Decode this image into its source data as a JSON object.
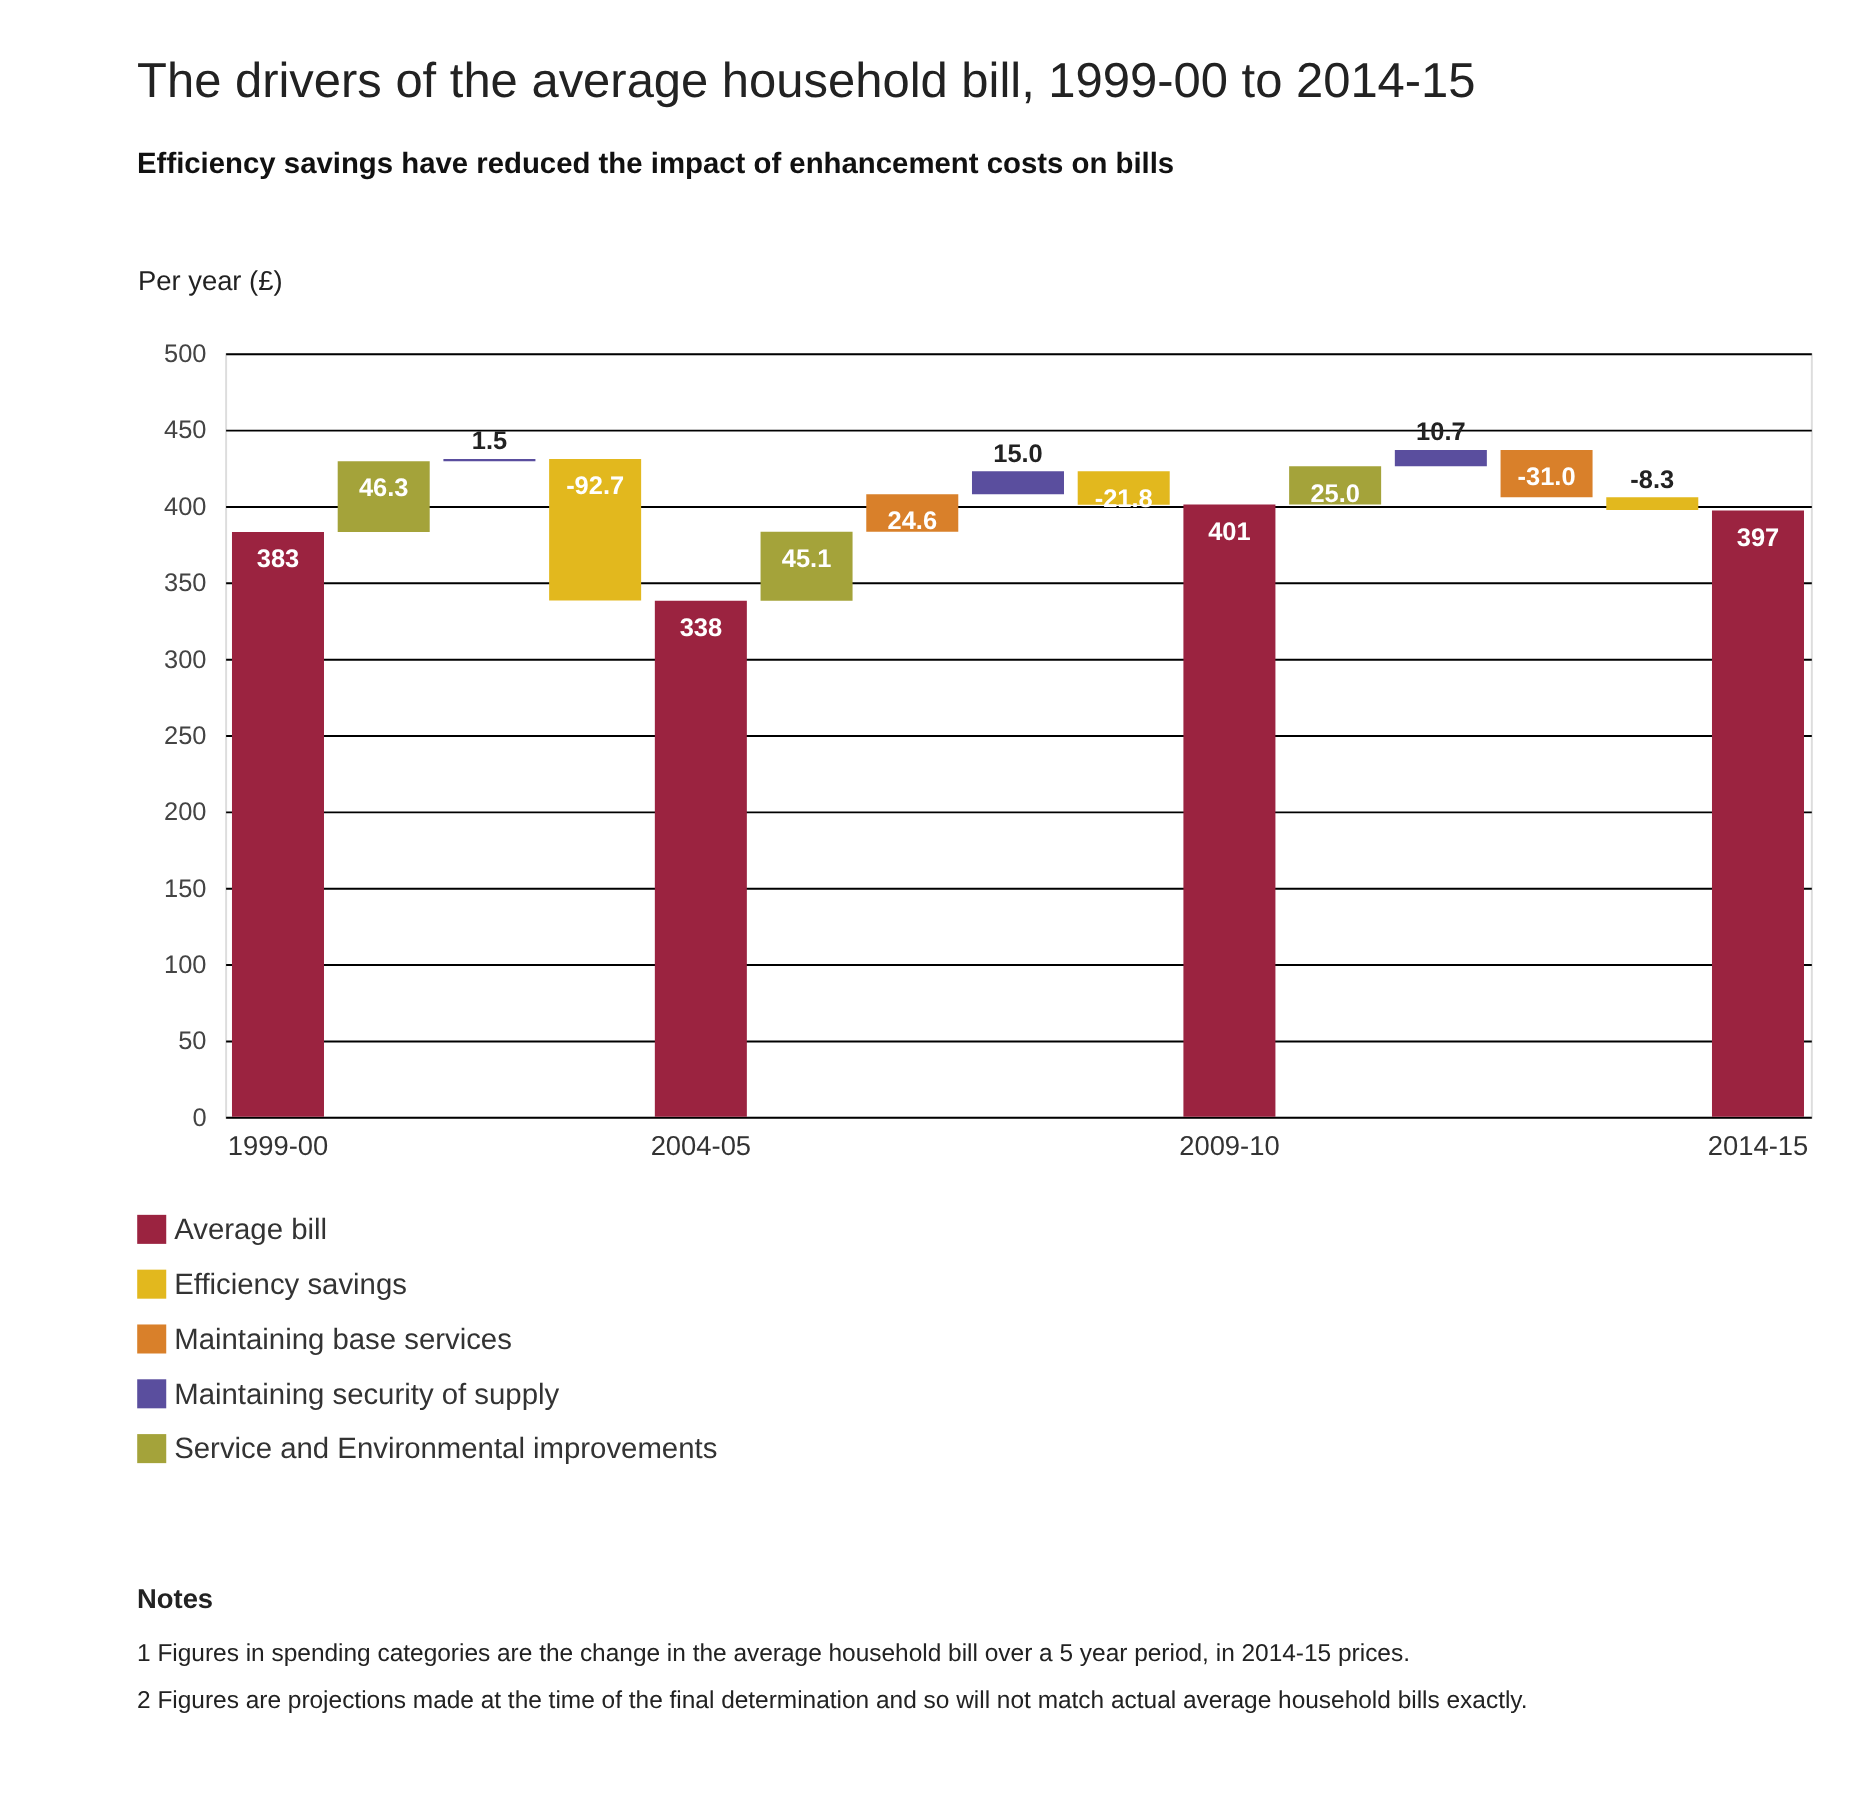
{
  "chart_data": {
    "type": "bar",
    "title": "The drivers of the average household bill, 1999-00 to 2014-15",
    "subtitle": "Efficiency savings have reduced the impact of enhancement costs on bills",
    "ylabel": "Per year (£)",
    "categories": [
      "1999-00",
      null,
      null,
      null,
      "2004-05",
      null,
      null,
      null,
      null,
      "2009-10",
      null,
      null,
      null,
      null,
      "2014-15"
    ],
    "stacked": false,
    "series": [
      {
        "name": "Average bill",
        "color": "#9b2340",
        "values": [
          383,
          null,
          null,
          null,
          338,
          null,
          null,
          null,
          null,
          401,
          null,
          null,
          null,
          null,
          397
        ],
        "base": [
          0,
          null,
          null,
          null,
          0,
          null,
          null,
          null,
          null,
          0,
          null,
          null,
          null,
          null,
          0
        ],
        "value_labels": [
          "383",
          null,
          null,
          null,
          "338",
          null,
          null,
          null,
          null,
          "401",
          null,
          null,
          null,
          null,
          "397"
        ]
      },
      {
        "name": "Efficiency savings",
        "color": "#e2b81e",
        "values": [
          null,
          null,
          null,
          -92.7,
          null,
          null,
          null,
          null,
          -21.8,
          null,
          null,
          null,
          null,
          -8.3,
          null
        ],
        "base": [
          null,
          null,
          null,
          430.8,
          null,
          null,
          null,
          null,
          422.7,
          null,
          null,
          null,
          null,
          405.7,
          null
        ],
        "value_labels": [
          null,
          null,
          null,
          "-92.7",
          null,
          null,
          null,
          null,
          "-21.8",
          null,
          null,
          null,
          null,
          "-8.3",
          null
        ]
      },
      {
        "name": "Maintaining base services",
        "color": "#d9802a",
        "values": [
          null,
          null,
          null,
          null,
          null,
          null,
          24.6,
          null,
          null,
          null,
          null,
          null,
          -31.0,
          null,
          null
        ],
        "base": [
          null,
          null,
          null,
          null,
          null,
          null,
          383.1,
          null,
          null,
          null,
          null,
          null,
          436.7,
          null,
          null
        ],
        "value_labels": [
          null,
          null,
          null,
          null,
          null,
          null,
          "24.6",
          null,
          null,
          null,
          null,
          null,
          "-31.0",
          null,
          null
        ]
      },
      {
        "name": "Maintaining security of supply",
        "color": "#5a4e9e",
        "values": [
          null,
          null,
          1.5,
          null,
          null,
          null,
          null,
          15.0,
          null,
          null,
          null,
          10.7,
          null,
          null,
          null
        ],
        "base": [
          null,
          null,
          429.3,
          null,
          null,
          null,
          null,
          407.7,
          null,
          null,
          null,
          426,
          null,
          null,
          null
        ],
        "value_labels": [
          null,
          null,
          "1.5",
          null,
          null,
          null,
          null,
          "15.0",
          null,
          null,
          null,
          "10.7",
          null,
          null,
          null
        ]
      },
      {
        "name": "Service and Environmental improvements",
        "color": "#a4a33a",
        "values": [
          null,
          46.3,
          null,
          null,
          null,
          45.1,
          null,
          null,
          null,
          null,
          25.0,
          null,
          null,
          null,
          null
        ],
        "base": [
          null,
          383,
          null,
          null,
          null,
          338,
          null,
          null,
          null,
          null,
          401,
          null,
          null,
          null,
          null
        ],
        "value_labels": [
          null,
          "46.3",
          null,
          null,
          null,
          "45.1",
          null,
          null,
          null,
          null,
          "25.0",
          null,
          null,
          null,
          null
        ]
      }
    ],
    "ylim": [
      0,
      500
    ],
    "yticks": [
      0,
      50,
      100,
      150,
      200,
      250,
      300,
      350,
      400,
      450,
      500
    ],
    "grid": "y",
    "legend": "bottom left",
    "annotations": [
      "Notes",
      "1     Figures in spending categories are the change in the average household bill over a 5 year period, in 2014-15 prices.",
      "2     Figures are projections made at the time of the final determination and so will not match actual average household bills exactly."
    ]
  }
}
